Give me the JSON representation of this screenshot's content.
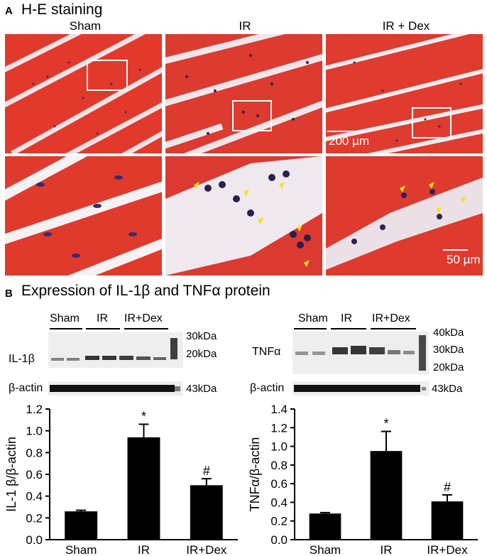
{
  "panelA": {
    "letter": "A",
    "title": "H-E staining",
    "columns": [
      "Sham",
      "IR",
      "IR + Dex"
    ],
    "scale_top": "200 µm",
    "scale_bottom": "50 µm"
  },
  "panelB": {
    "letter": "B",
    "title": "Expression of IL-1β and TNFα protein",
    "left_blot": {
      "groups": [
        "Sham",
        "IR",
        "IR+Dex"
      ],
      "row1_label": "IL-1β",
      "row2_label": "β-actin",
      "markers": [
        "30kDa",
        "20kDa",
        "43kDa"
      ]
    },
    "right_blot": {
      "groups": [
        "Sham",
        "IR",
        "IR+Dex"
      ],
      "row1_label": "TNFα",
      "row2_label": "β-actin",
      "markers": [
        "40kDa",
        "30kDa",
        "20kDa",
        "43kDa"
      ]
    }
  },
  "chart_data": [
    {
      "type": "bar",
      "categories": [
        "Sham",
        "IR",
        "IR+Dex"
      ],
      "values": [
        0.26,
        0.94,
        0.5
      ],
      "errors": [
        0.01,
        0.12,
        0.06
      ],
      "annotations": [
        "",
        "*",
        "#"
      ],
      "ylabel": "IL-1 β/β-actin",
      "ylim": [
        0.0,
        1.2
      ],
      "yticks": [
        "0.0",
        "0.2",
        "0.4",
        "0.6",
        "0.8",
        "1.0",
        "1.2"
      ],
      "bar_color": "#000000"
    },
    {
      "type": "bar",
      "categories": [
        "Sham",
        "IR",
        "IR+Dex"
      ],
      "values": [
        0.28,
        0.95,
        0.41
      ],
      "errors": [
        0.01,
        0.21,
        0.07
      ],
      "annotations": [
        "",
        "*",
        "#"
      ],
      "ylabel": "TNFα/β-actin",
      "ylim": [
        0.0,
        1.4
      ],
      "yticks": [
        "0.0",
        "0.2",
        "0.4",
        "0.6",
        "0.8",
        "1.0",
        "1.2",
        "1.4"
      ],
      "bar_color": "#000000"
    }
  ]
}
